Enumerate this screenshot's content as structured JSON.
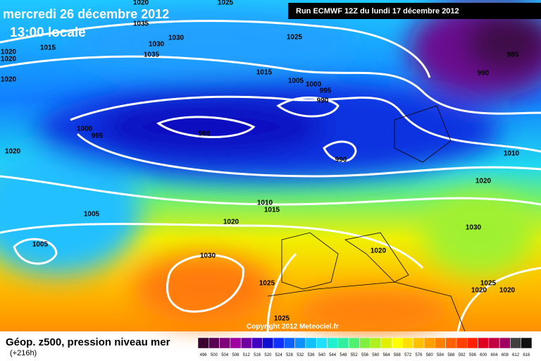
{
  "header": {
    "date": "mercredi 26 décembre 2012",
    "time": "13:00 locale",
    "run": "Run ECMWF 12Z du lundi 17 décembre 2012"
  },
  "footer": {
    "title": "Géop. z500, pression niveau mer",
    "lead": "(+216h)",
    "copyright": "Copyright 2012 Meteociel.fr"
  },
  "isobar_labels": [
    1025,
    1020,
    1035,
    1030,
    1030,
    1035,
    1025,
    1015,
    1020,
    1020,
    1020,
    985,
    990,
    1015,
    1005,
    1000,
    995,
    990,
    990,
    1000,
    995,
    990,
    1020,
    1010,
    1020,
    1005,
    1010,
    1015,
    1020,
    1030,
    1005,
    1020,
    1030,
    1025,
    1025,
    1020,
    1020,
    1025
  ],
  "colorbar": {
    "ticks": [
      496,
      500,
      504,
      508,
      512,
      516,
      520,
      524,
      528,
      532,
      536,
      540,
      544,
      548,
      552,
      556,
      560,
      564,
      568,
      572,
      576,
      580,
      584,
      588,
      592,
      596,
      600,
      604,
      608,
      612,
      616
    ],
    "colors": [
      "#3a0030",
      "#5a0050",
      "#80007a",
      "#a000a0",
      "#7000a0",
      "#4000c0",
      "#1010d0",
      "#1030ff",
      "#1060ff",
      "#1090ff",
      "#10c0ff",
      "#20e0ff",
      "#20f0d0",
      "#30f0a0",
      "#50f070",
      "#80f040",
      "#b0f020",
      "#e0f000",
      "#ffff00",
      "#ffe000",
      "#ffc000",
      "#ffa000",
      "#ff8000",
      "#ff6000",
      "#ff4000",
      "#ff2000",
      "#e00020",
      "#c00040",
      "#a00060",
      "#404040",
      "#101010"
    ]
  }
}
